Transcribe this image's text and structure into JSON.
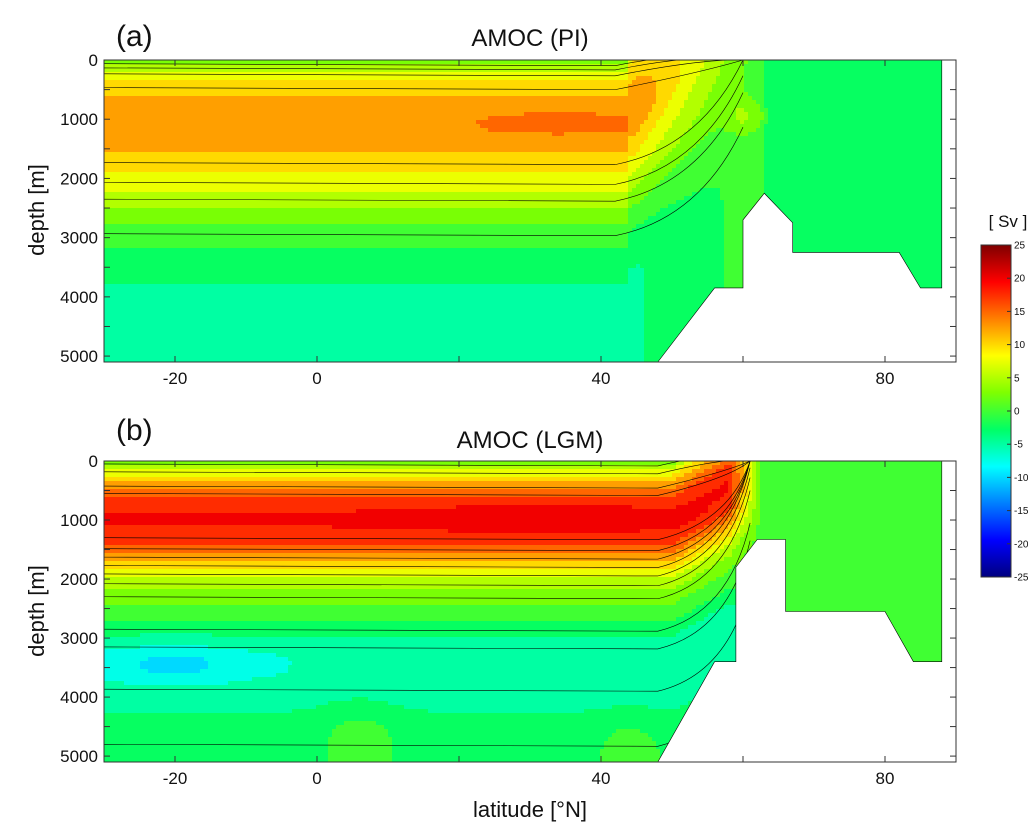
{
  "chart_data": [
    {
      "type": "heatmap",
      "panel_letter": "(a)",
      "title": "AMOC (PI)",
      "xlabel": "",
      "ylabel": "depth [m]",
      "xlim": [
        -30,
        90
      ],
      "ylim": [
        5100,
        0
      ],
      "xticks": [
        -20,
        0,
        40,
        80
      ],
      "yticks": [
        0,
        1000,
        2000,
        3000,
        4000,
        5000
      ],
      "contour_levels": [
        -25,
        -22.5,
        -20,
        -17.5,
        -15,
        -12.5,
        -10,
        -7.5,
        -5,
        -2.5,
        0,
        2.5,
        5,
        7.5,
        10,
        12.5,
        15,
        17.5,
        20,
        22.5,
        25
      ],
      "overturning_profile": {
        "depths": [
          0,
          100,
          200,
          300,
          400,
          600,
          800,
          1000,
          1200,
          1400,
          1600,
          1800,
          2000,
          2200,
          2400,
          2600,
          2800,
          3000,
          3200,
          3400,
          3600,
          4000,
          5100
        ],
        "values": [
          0,
          4,
          7,
          8.5,
          9.5,
          11,
          12.5,
          13.5,
          13.5,
          12.5,
          11,
          9.5,
          8,
          6.5,
          4.5,
          2.5,
          1,
          -0.5,
          -1.5,
          -2.5,
          -3.5,
          -4,
          -4
        ]
      },
      "features": {
        "core_max_sv": 15,
        "core_lat_range": [
          28,
          40
        ],
        "core_depth_m": 1050,
        "north_max_lat": 60,
        "north_max_depth_m": 1000
      },
      "bathymetry": [
        [
          48,
          5100
        ],
        [
          56,
          3850
        ],
        [
          60,
          3850
        ],
        [
          60,
          2700
        ],
        [
          63,
          2250
        ],
        [
          67,
          2750
        ],
        [
          67,
          3250
        ],
        [
          82,
          3250
        ],
        [
          85,
          3850
        ],
        [
          88,
          3850
        ],
        [
          88,
          0
        ],
        [
          90,
          0
        ],
        [
          90,
          5100
        ]
      ]
    },
    {
      "type": "heatmap",
      "panel_letter": "(b)",
      "title": "AMOC (LGM)",
      "xlabel": "latitude [°N]",
      "ylabel": "depth [m]",
      "xlim": [
        -30,
        90
      ],
      "ylim": [
        5100,
        0
      ],
      "xticks": [
        -20,
        0,
        40,
        80
      ],
      "yticks": [
        0,
        1000,
        2000,
        3000,
        4000,
        5000
      ],
      "contour_levels": [
        -25,
        -22.5,
        -20,
        -17.5,
        -15,
        -12.5,
        -10,
        -7.5,
        -5,
        -2.5,
        0,
        2.5,
        5,
        7.5,
        10,
        12.5,
        15,
        17.5,
        20,
        22.5,
        25
      ],
      "overturning_profile": {
        "depths": [
          0,
          100,
          200,
          300,
          400,
          500,
          600,
          700,
          800,
          1000,
          1200,
          1400,
          1600,
          1800,
          2000,
          2200,
          2400,
          2600,
          2800,
          3000,
          3300,
          3600,
          4000,
          4500,
          5100
        ],
        "values": [
          0,
          5,
          8,
          10,
          12,
          14,
          16,
          17.5,
          18.5,
          19,
          18.5,
          16.5,
          13,
          9.5,
          6,
          3.5,
          1.5,
          0,
          -2,
          -4,
          -6,
          -6,
          -4.5,
          -3,
          -2
        ]
      },
      "features": {
        "core_max_sv": 20,
        "core_lat_range": [
          12,
          52
        ],
        "core_depth_m": 950,
        "deep_min_sv": -9,
        "deep_min_lat": -20,
        "deep_min_depth_m": 3450
      },
      "bathymetry": [
        [
          48,
          5100
        ],
        [
          56,
          3400
        ],
        [
          59,
          3400
        ],
        [
          59,
          1800
        ],
        [
          62,
          1330
        ],
        [
          66,
          1330
        ],
        [
          66,
          2550
        ],
        [
          80,
          2550
        ],
        [
          84,
          3400
        ],
        [
          88,
          3400
        ],
        [
          88,
          0
        ],
        [
          90,
          0
        ],
        [
          90,
          5100
        ]
      ]
    }
  ],
  "colorbar": {
    "title": "[ Sv ]",
    "ticks": [
      25,
      20,
      15,
      10,
      5,
      0,
      -5,
      -10,
      -15,
      -20,
      -25
    ],
    "range": [
      -25,
      25
    ]
  },
  "colors": {
    "colormap": [
      "#00007f",
      "#0000ff",
      "#007fff",
      "#00ffff",
      "#00ff66",
      "#7fff00",
      "#ffff00",
      "#ff7f00",
      "#ff0000",
      "#7f0000"
    ],
    "mask": "#ffffff",
    "contour_line": "#000000"
  }
}
